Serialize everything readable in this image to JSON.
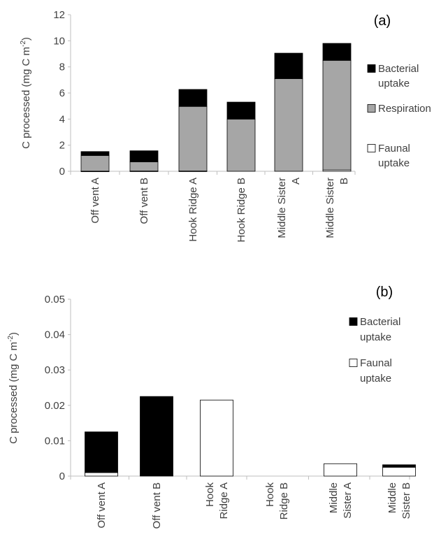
{
  "chart_data": [
    {
      "type": "bar",
      "stacked": true,
      "panel_label": "(a)",
      "ylabel": "C processed (mg C m",
      "ylabel_sup": "-2",
      "ylabel_close": ")",
      "ylim": [
        0,
        12
      ],
      "yticks": [
        "0",
        "2",
        "4",
        "6",
        "8",
        "10",
        "12"
      ],
      "categories": [
        "Off vent A",
        "Off vent B",
        "Hook Ridge A",
        "Hook Ridge B",
        "Middle Sister A",
        "Middle Sister B"
      ],
      "category_label_lines": [
        [
          "Off vent A"
        ],
        [
          "Off vent B"
        ],
        [
          "Hook Ridge A"
        ],
        [
          "Hook Ridge B"
        ],
        [
          "Middle Sister",
          "A"
        ],
        [
          "Middle Sister",
          "B"
        ]
      ],
      "grid": false,
      "legend_position": "right",
      "series": [
        {
          "name": "Faunal uptake",
          "legend_lines": [
            "Faunal",
            "uptake"
          ],
          "color": "#ffffff",
          "values": [
            0.01,
            0.02,
            0.02,
            0.0,
            0.0,
            0.1
          ]
        },
        {
          "name": "Respiration",
          "legend_lines": [
            "Respiration"
          ],
          "color": "#a6a6a6",
          "values": [
            1.2,
            0.7,
            4.95,
            4.0,
            7.1,
            8.4
          ]
        },
        {
          "name": "Bacterial uptake",
          "legend_lines": [
            "Bacterial",
            "uptake"
          ],
          "color": "#000000",
          "values": [
            0.3,
            0.85,
            1.3,
            1.3,
            1.95,
            1.3
          ]
        }
      ]
    },
    {
      "type": "bar",
      "stacked": true,
      "panel_label": "(b)",
      "ylabel": "C processed (mg C m",
      "ylabel_sup": "-2",
      "ylabel_close": ")",
      "ylim": [
        0,
        0.05
      ],
      "yticks": [
        "0",
        "0.01",
        "0.02",
        "0.03",
        "0.04",
        "0.05"
      ],
      "categories": [
        "Off vent A",
        "Off vent B",
        "Hook Ridge A",
        "Hook Ridge B",
        "Middle Sister A",
        "Middle Sister B"
      ],
      "category_label_lines": [
        [
          "Off vent A"
        ],
        [
          "Off vent B"
        ],
        [
          "Hook",
          "Ridge A"
        ],
        [
          "Hook",
          "Ridge B"
        ],
        [
          "Middle",
          "Sister A"
        ],
        [
          "Middle",
          "Sister B"
        ]
      ],
      "grid": false,
      "legend_position": "right",
      "series": [
        {
          "name": "Faunal uptake",
          "legend_lines": [
            "Faunal",
            "uptake"
          ],
          "color": "#ffffff",
          "values": [
            0.001,
            0.0,
            0.0215,
            0.0,
            0.0035,
            0.0025
          ]
        },
        {
          "name": "Bacterial uptake",
          "legend_lines": [
            "Bacterial",
            "uptake"
          ],
          "color": "#000000",
          "values": [
            0.0115,
            0.0225,
            0.0,
            0.0,
            0.0,
            0.0007
          ]
        }
      ]
    }
  ]
}
